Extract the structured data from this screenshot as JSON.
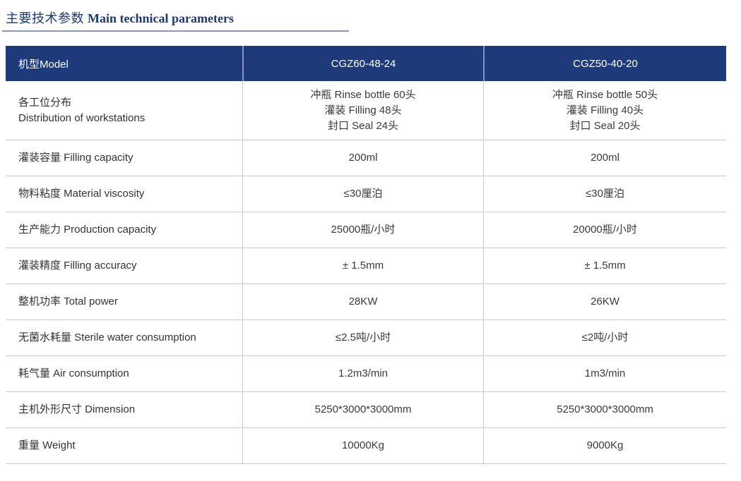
{
  "header": {
    "title_zh": "主要技术参数",
    "title_en": "Main technical parameters"
  },
  "colors": {
    "title_text": "#1e3a6e",
    "title_underline": "#8798bd",
    "table_header_bg": "#1e3a7a",
    "table_header_text": "#ffffff",
    "table_header_divider": "#8494bc",
    "body_text": "#3a3a3a",
    "grid_line": "#c9c9c9"
  },
  "table": {
    "columns": [
      "机型Model",
      "CGZ60-48-24",
      "CGZ50-40-20"
    ],
    "rows": [
      {
        "label": "各工位分布\nDistribution of workstations",
        "values": [
          "冲瓶 Rinse bottle 60头\n灌装 Filling 48头\n封口 Seal 24头",
          "冲瓶 Rinse bottle 50头\n灌装 Filling 40头\n封口 Seal 20头"
        ]
      },
      {
        "label": "灌装容量 Filling capacity",
        "values": [
          "200ml",
          "200ml"
        ]
      },
      {
        "label": "物料粘度 Material viscosity",
        "values": [
          "≤30厘泊",
          "≤30厘泊"
        ]
      },
      {
        "label": "生产能力 Production capacity",
        "values": [
          "25000瓶/小时",
          "20000瓶/小时"
        ]
      },
      {
        "label": "灌装精度 Filling accuracy",
        "values": [
          "± 1.5mm",
          "± 1.5mm"
        ]
      },
      {
        "label": "整机功率 Total power",
        "values": [
          "28KW",
          "26KW"
        ]
      },
      {
        "label": "无菌水耗量 Sterile water consumption",
        "values": [
          "≤2.5吨/小时",
          "≤2吨/小时"
        ]
      },
      {
        "label": "耗气量 Air consumption",
        "values": [
          "1.2m3/min",
          "1m3/min"
        ]
      },
      {
        "label": "主机外形尺寸 Dimension",
        "values": [
          "5250*3000*3000mm",
          "5250*3000*3000mm"
        ]
      },
      {
        "label": "重量 Weight",
        "values": [
          "10000Kg",
          "9000Kg"
        ]
      }
    ]
  }
}
